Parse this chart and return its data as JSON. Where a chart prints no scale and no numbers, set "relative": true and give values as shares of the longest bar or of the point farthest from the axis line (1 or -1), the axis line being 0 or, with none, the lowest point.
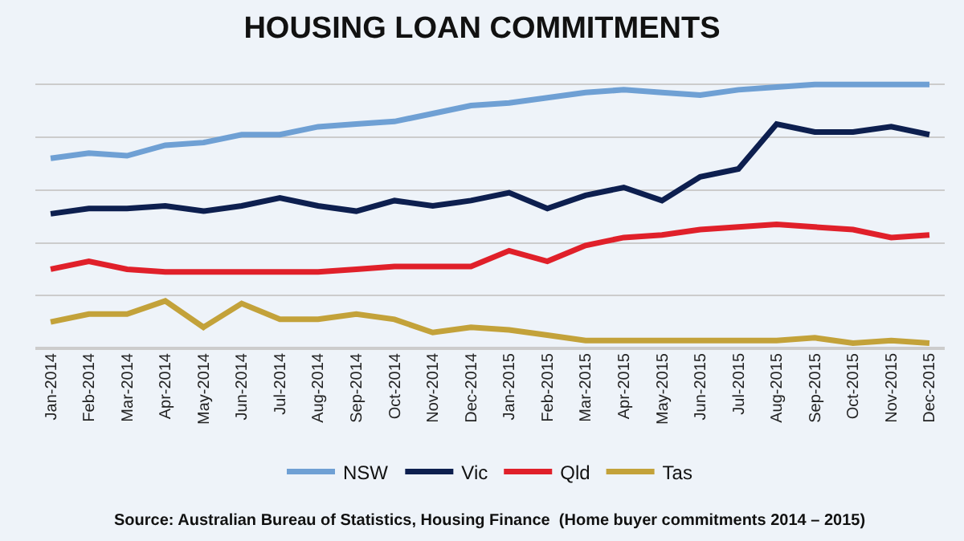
{
  "chart_data": {
    "type": "line",
    "title": "HOUSING LOAN COMMITMENTS",
    "relative": true,
    "grid": "y",
    "legend": "bottom",
    "marker": "none",
    "line_style": "solid",
    "categories": [
      "Jan-2014",
      "Feb-2014",
      "Mar-2014",
      "Apr-2014",
      "May-2014",
      "Jun-2014",
      "Jul-2014",
      "Aug-2014",
      "Sep-2014",
      "Oct-2014",
      "Nov-2014",
      "Dec-2014",
      "Jan-2015",
      "Feb-2015",
      "Mar-2015",
      "Apr-2015",
      "May-2015",
      "Jun-2015",
      "Jul-2015",
      "Aug-2015",
      "Sep-2015",
      "Oct-2015",
      "Nov-2015",
      "Dec-2015"
    ],
    "series": [
      {
        "name": "NSW",
        "color": "#6fa0d4",
        "values": [
          0.72,
          0.74,
          0.73,
          0.77,
          0.78,
          0.81,
          0.81,
          0.84,
          0.85,
          0.86,
          0.89,
          0.92,
          0.93,
          0.95,
          0.97,
          0.98,
          0.97,
          0.96,
          0.98,
          0.99,
          1,
          1,
          1,
          1
        ]
      },
      {
        "name": "Vic",
        "color": "#0d1f4f",
        "values": [
          0.51,
          0.53,
          0.53,
          0.54,
          0.52,
          0.54,
          0.57,
          0.54,
          0.52,
          0.56,
          0.54,
          0.56,
          0.59,
          0.53,
          0.58,
          0.61,
          0.56,
          0.65,
          0.68,
          0.85,
          0.82,
          0.82,
          0.84,
          0.81
        ]
      },
      {
        "name": "Qld",
        "color": "#e0202a",
        "values": [
          0.3,
          0.33,
          0.3,
          0.29,
          0.29,
          0.29,
          0.29,
          0.29,
          0.3,
          0.31,
          0.31,
          0.31,
          0.37,
          0.33,
          0.39,
          0.42,
          0.43,
          0.45,
          0.46,
          0.47,
          0.46,
          0.45,
          0.42,
          0.43
        ]
      },
      {
        "name": "Tas",
        "color": "#c3a23a",
        "values": [
          0.1,
          0.13,
          0.13,
          0.18,
          0.08,
          0.17,
          0.11,
          0.11,
          0.13,
          0.11,
          0.06,
          0.08,
          0.07,
          0.05,
          0.03,
          0.03,
          0.03,
          0.03,
          0.03,
          0.03,
          0.04,
          0.02,
          0.03,
          0.02
        ]
      }
    ],
    "annotations": [
      "Source: Australian Bureau of Statistics, Housing Finance  (Home buyer commitments 2014 – 2015)"
    ]
  }
}
